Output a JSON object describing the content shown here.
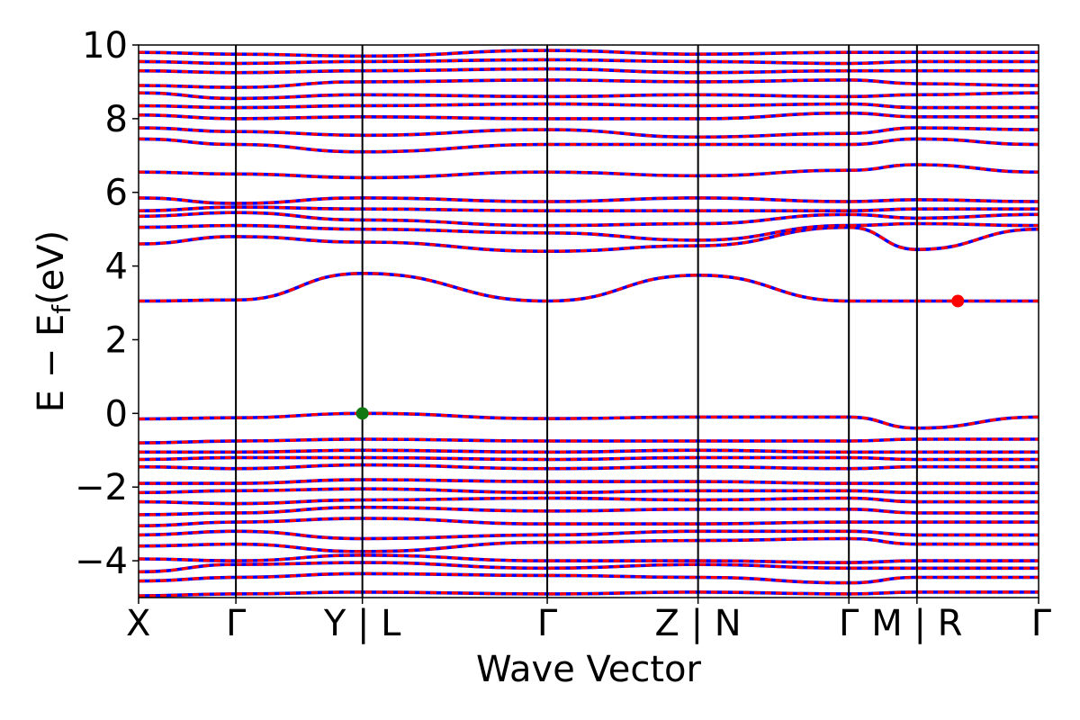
{
  "chart_data": {
    "type": "line",
    "title": "",
    "xlabel": "Wave Vector",
    "ylabel": "E − E",
    "ylabel_subscript": "f",
    "ylabel_unit": "(eV)",
    "ylim": [
      -5,
      10
    ],
    "yticks": [
      -4,
      -2,
      0,
      2,
      4,
      6,
      8,
      10
    ],
    "ytick_labels": [
      "−4",
      "−2",
      "0",
      "2",
      "4",
      "6",
      "8",
      "10"
    ],
    "kpath": [
      {
        "label": "X",
        "x": 0.0
      },
      {
        "label": "Γ",
        "x": 0.1
      },
      {
        "label": "Y | L",
        "x": 0.23
      },
      {
        "label": "Γ",
        "x": 0.42
      },
      {
        "label": "Z | N",
        "x": 0.575
      },
      {
        "label": "Γ",
        "x": 0.73
      },
      {
        "label": "M | R",
        "x": 0.8
      },
      {
        "label": "Γ",
        "x": 0.925
      }
    ],
    "xlim": [
      0,
      0.925
    ],
    "series": [
      {
        "spin": "up",
        "color": "#0000ff",
        "style": "solid"
      },
      {
        "spin": "down",
        "color": "#ff0000",
        "style": "dashed"
      }
    ],
    "vbm_marker": {
      "x": 0.23,
      "y": 0.0,
      "color": "#117711"
    },
    "cbm_marker": {
      "x": 0.842,
      "y": 3.05,
      "color": "#ff0000"
    },
    "bands": {
      "highlighted_levels": [
        [
          -4.95,
          -4.9,
          -4.85,
          -4.9,
          -4.85,
          -4.9,
          -4.85,
          -4.85
        ],
        [
          -4.55,
          -4.45,
          -4.35,
          -4.4,
          -4.45,
          -4.6,
          -4.45,
          -4.45
        ],
        [
          -4.3,
          -4.1,
          -4.05,
          -4.2,
          -4.1,
          -4.2,
          -4.2,
          -4.2
        ],
        [
          -3.95,
          -4.0,
          -3.85,
          -4.0,
          -4.0,
          -4.05,
          -4.0,
          -4.0
        ],
        [
          -3.6,
          -3.55,
          -3.75,
          -3.5,
          -3.45,
          -3.4,
          -3.55,
          -3.55
        ],
        [
          -3.3,
          -3.2,
          -3.4,
          -3.3,
          -3.2,
          -3.2,
          -3.3,
          -3.3
        ],
        [
          -3.05,
          -2.95,
          -2.85,
          -3.0,
          -3.0,
          -2.95,
          -2.95,
          -2.95
        ],
        [
          -2.75,
          -2.7,
          -2.55,
          -2.65,
          -2.6,
          -2.6,
          -2.7,
          -2.7
        ],
        [
          -2.4,
          -2.45,
          -2.35,
          -2.3,
          -2.35,
          -2.3,
          -2.4,
          -2.4
        ],
        [
          -2.15,
          -2.1,
          -2.05,
          -2.15,
          -2.1,
          -2.1,
          -2.15,
          -2.15
        ],
        [
          -1.9,
          -1.9,
          -1.8,
          -1.85,
          -1.85,
          -1.9,
          -1.9,
          -1.9
        ],
        [
          -1.45,
          -1.5,
          -1.4,
          -1.5,
          -1.45,
          -1.5,
          -1.45,
          -1.45
        ],
        [
          -1.25,
          -1.2,
          -1.2,
          -1.25,
          -1.2,
          -1.2,
          -1.25,
          -1.25
        ],
        [
          -1.05,
          -1.05,
          -1.0,
          -1.05,
          -1.0,
          -1.05,
          -1.05,
          -1.05
        ],
        [
          -0.8,
          -0.75,
          -0.7,
          -0.75,
          -0.75,
          -0.75,
          -0.7,
          -0.7
        ],
        [
          -0.15,
          -0.12,
          0.0,
          -0.14,
          -0.1,
          -0.1,
          -0.4,
          -0.1
        ],
        [
          3.05,
          3.08,
          3.8,
          3.05,
          3.75,
          3.05,
          3.05,
          3.05
        ],
        [
          4.6,
          4.8,
          4.65,
          4.4,
          4.55,
          5.05,
          4.45,
          5.0
        ],
        [
          5.05,
          5.1,
          5.0,
          4.9,
          4.7,
          5.1,
          5.15,
          5.1
        ],
        [
          5.35,
          5.45,
          5.25,
          5.1,
          5.15,
          5.4,
          5.3,
          5.4
        ],
        [
          5.5,
          5.6,
          5.55,
          5.5,
          5.5,
          5.5,
          5.55,
          5.55
        ],
        [
          5.85,
          5.7,
          5.85,
          5.75,
          5.85,
          5.75,
          5.8,
          5.75
        ],
        [
          6.55,
          6.5,
          6.4,
          6.55,
          6.45,
          6.6,
          6.75,
          6.55
        ],
        [
          7.45,
          7.3,
          7.1,
          7.3,
          7.3,
          7.3,
          7.45,
          7.3
        ],
        [
          7.75,
          7.65,
          7.55,
          7.7,
          7.5,
          7.6,
          7.75,
          7.7
        ],
        [
          8.1,
          8.0,
          8.05,
          8.0,
          8.0,
          8.15,
          8.05,
          8.05
        ],
        [
          8.35,
          8.3,
          8.35,
          8.4,
          8.35,
          8.4,
          8.3,
          8.3
        ],
        [
          8.7,
          8.55,
          8.65,
          8.6,
          8.65,
          8.6,
          8.65,
          8.7
        ],
        [
          8.9,
          8.85,
          9.0,
          9.05,
          9.0,
          9.05,
          8.95,
          8.9
        ],
        [
          9.3,
          9.25,
          9.3,
          9.35,
          9.25,
          9.3,
          9.3,
          9.3
        ],
        [
          9.55,
          9.5,
          9.55,
          9.6,
          9.55,
          9.5,
          9.55,
          9.55
        ],
        [
          9.8,
          9.75,
          9.7,
          9.85,
          9.75,
          9.8,
          9.8,
          9.8
        ]
      ]
    }
  }
}
